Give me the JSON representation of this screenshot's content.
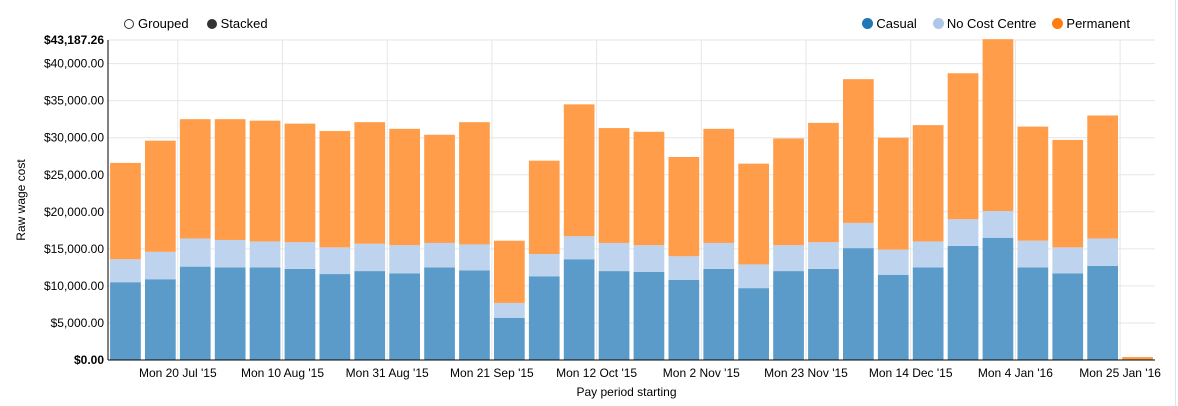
{
  "controls": {
    "grouped_label": "Grouped",
    "stacked_label": "Stacked"
  },
  "legend": [
    {
      "name": "Casual",
      "color": "#1f77b4"
    },
    {
      "name": "No Cost Centre",
      "color": "#aec7e8"
    },
    {
      "name": "Permanent",
      "color": "#ff7f0e"
    }
  ],
  "chart_data": {
    "type": "bar",
    "stacked": true,
    "xlabel": "Pay period starting",
    "ylabel": "Raw wage cost",
    "ylim": [
      0,
      43187.26
    ],
    "y_max_label": "$43,187.26",
    "y_min_label": "$0.00",
    "y_ticks": [
      5000,
      10000,
      15000,
      20000,
      25000,
      30000,
      35000,
      40000
    ],
    "y_tick_labels": [
      "$5,000.00",
      "$10,000.00",
      "$15,000.00",
      "$20,000.00",
      "$25,000.00",
      "$30,000.00",
      "$35,000.00",
      "$40,000.00"
    ],
    "x_tick_labels": [
      {
        "index": 1.5,
        "label": "Mon 20 Jul '15"
      },
      {
        "index": 4.5,
        "label": "Mon 10 Aug '15"
      },
      {
        "index": 7.5,
        "label": "Mon 31 Aug '15"
      },
      {
        "index": 10.5,
        "label": "Mon 21 Sep '15"
      },
      {
        "index": 13.5,
        "label": "Mon 12 Oct '15"
      },
      {
        "index": 16.5,
        "label": "Mon 2 Nov '15"
      },
      {
        "index": 19.5,
        "label": "Mon 23 Nov '15"
      },
      {
        "index": 22.5,
        "label": "Mon 14 Dec '15"
      },
      {
        "index": 25.5,
        "label": "Mon 4 Jan '16"
      },
      {
        "index": 28.5,
        "label": "Mon 25 Jan '16"
      }
    ],
    "grid": true,
    "legend_position": "top-right",
    "series": [
      {
        "name": "Casual",
        "color": "#5a9bc9",
        "values": [
          10500,
          10900,
          12600,
          12500,
          12500,
          12300,
          11600,
          12000,
          11700,
          12500,
          12100,
          5700,
          11300,
          13600,
          12000,
          11900,
          10800,
          12300,
          9700,
          12000,
          12300,
          15100,
          11500,
          12500,
          15400,
          16500,
          12500,
          11700,
          12700,
          0
        ]
      },
      {
        "name": "No Cost Centre",
        "color": "#bdd3ee",
        "values": [
          3100,
          3700,
          3800,
          3700,
          3500,
          3600,
          3600,
          3700,
          3800,
          3300,
          3500,
          2000,
          3000,
          3100,
          3800,
          3600,
          3200,
          3500,
          3200,
          3500,
          3600,
          3400,
          3400,
          3500,
          3600,
          3600,
          3600,
          3500,
          3700,
          0
        ]
      },
      {
        "name": "Permanent",
        "color": "#ff9d4a",
        "values": [
          13000,
          15000,
          16100,
          16300,
          16300,
          16000,
          15700,
          16400,
          15700,
          14600,
          16500,
          8400,
          12600,
          17800,
          15500,
          15300,
          13400,
          15400,
          13600,
          14400,
          16100,
          19400,
          15100,
          15700,
          19700,
          23200,
          15400,
          14500,
          16600,
          400
        ]
      }
    ]
  }
}
